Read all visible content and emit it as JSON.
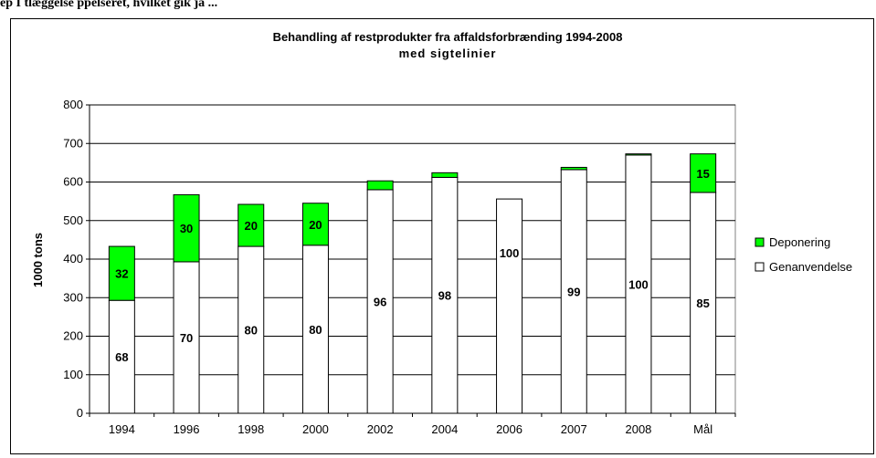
{
  "caption": "ep I tlæggelse ppelseret, hvilket gik ja ...",
  "chart_data": {
    "type": "bar",
    "stacked": true,
    "title": "Behandling af restprodukter fra affaldsforbrænding 1994-2008",
    "subtitle": "med sigtelinier",
    "ylabel": "1000 tons",
    "xlabel": "",
    "ylim": [
      0,
      800
    ],
    "yticks": [
      0,
      100,
      200,
      300,
      400,
      500,
      600,
      700,
      800
    ],
    "grid": true,
    "legend_position": "right",
    "categories": [
      "1994",
      "1996",
      "1998",
      "2000",
      "2002",
      "2004",
      "2006",
      "2007",
      "2008",
      "Mål"
    ],
    "series": [
      {
        "name": "Genanvendelse",
        "color": "#ffffff",
        "values": [
          293,
          393,
          433,
          436,
          580,
          612,
          556,
          632,
          670,
          573
        ],
        "labels": [
          "68",
          "70",
          "80",
          "80",
          "96",
          "98",
          "100",
          "99",
          "100",
          "85"
        ]
      },
      {
        "name": "Deponering",
        "color": "#00ff00",
        "values": [
          140,
          174,
          109,
          109,
          23,
          12,
          0,
          6,
          3,
          100
        ],
        "labels": [
          "32",
          "30",
          "20",
          "20",
          "",
          "",
          "",
          "",
          "",
          "15"
        ]
      }
    ]
  }
}
